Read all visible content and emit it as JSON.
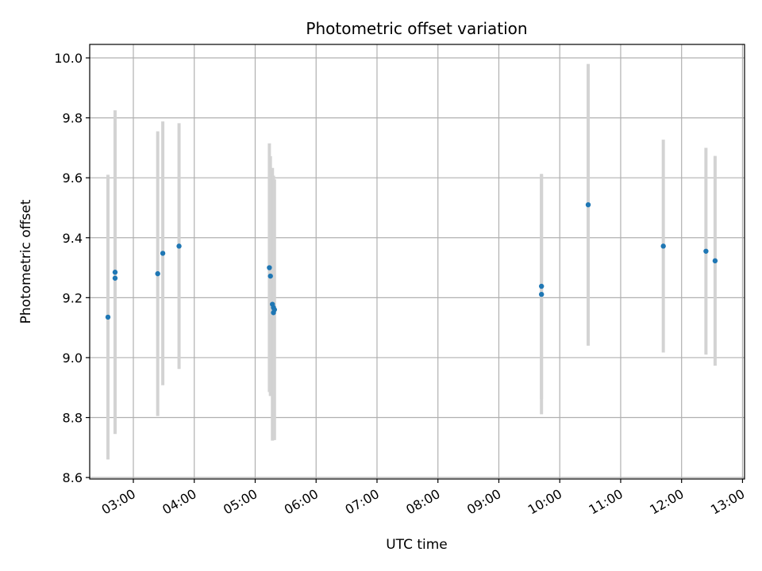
{
  "chart_data": {
    "type": "scatter",
    "title": "Photometric offset variation",
    "xlabel": "UTC time",
    "ylabel": "Photometric offset",
    "x_tick_labels": [
      "03:00",
      "04:00",
      "05:00",
      "06:00",
      "07:00",
      "08:00",
      "09:00",
      "10:00",
      "11:00",
      "12:00",
      "13:00"
    ],
    "x_ticks": [
      "03:00",
      "04:00",
      "05:00",
      "06:00",
      "07:00",
      "08:00",
      "09:00",
      "10:00",
      "11:00",
      "12:00",
      "13:00"
    ],
    "xlim": [
      "02:17",
      "13:02"
    ],
    "ylim": [
      8.595,
      10.045
    ],
    "y_ticks": [
      8.6,
      8.8,
      9.0,
      9.2,
      9.4,
      9.6,
      9.8,
      10.0
    ],
    "y_tick_labels": [
      "8.6",
      "8.8",
      "9.0",
      "9.2",
      "9.4",
      "9.6",
      "9.8",
      "10.0"
    ],
    "grid": true,
    "marker_color": "#1f77b4",
    "errorbar_color": "#d3d3d3",
    "points": [
      {
        "x": "02:35",
        "y": 9.135,
        "err": 0.475
      },
      {
        "x": "02:42",
        "y": 9.285,
        "err": 0.54
      },
      {
        "x": "02:42",
        "y": 9.265,
        "err": 0.515
      },
      {
        "x": "03:24",
        "y": 9.28,
        "err": 0.475
      },
      {
        "x": "03:29",
        "y": 9.348,
        "err": 0.44
      },
      {
        "x": "03:45",
        "y": 9.372,
        "err": 0.41
      },
      {
        "x": "05:14",
        "y": 9.3,
        "err": 0.415
      },
      {
        "x": "05:15",
        "y": 9.272,
        "err": 0.4
      },
      {
        "x": "05:17",
        "y": 9.178,
        "err": 0.455
      },
      {
        "x": "05:18",
        "y": 9.167,
        "err": 0.44
      },
      {
        "x": "05:18",
        "y": 9.15,
        "err": 0.425
      },
      {
        "x": "05:19",
        "y": 9.16,
        "err": 0.435
      },
      {
        "x": "09:42",
        "y": 9.238,
        "err": 0.375
      },
      {
        "x": "09:42",
        "y": 9.211,
        "err": 0.4
      },
      {
        "x": "10:28",
        "y": 9.51,
        "err": 0.47
      },
      {
        "x": "11:42",
        "y": 9.372,
        "err": 0.355
      },
      {
        "x": "12:24",
        "y": 9.355,
        "err": 0.345
      },
      {
        "x": "12:33",
        "y": 9.323,
        "err": 0.35
      }
    ]
  }
}
